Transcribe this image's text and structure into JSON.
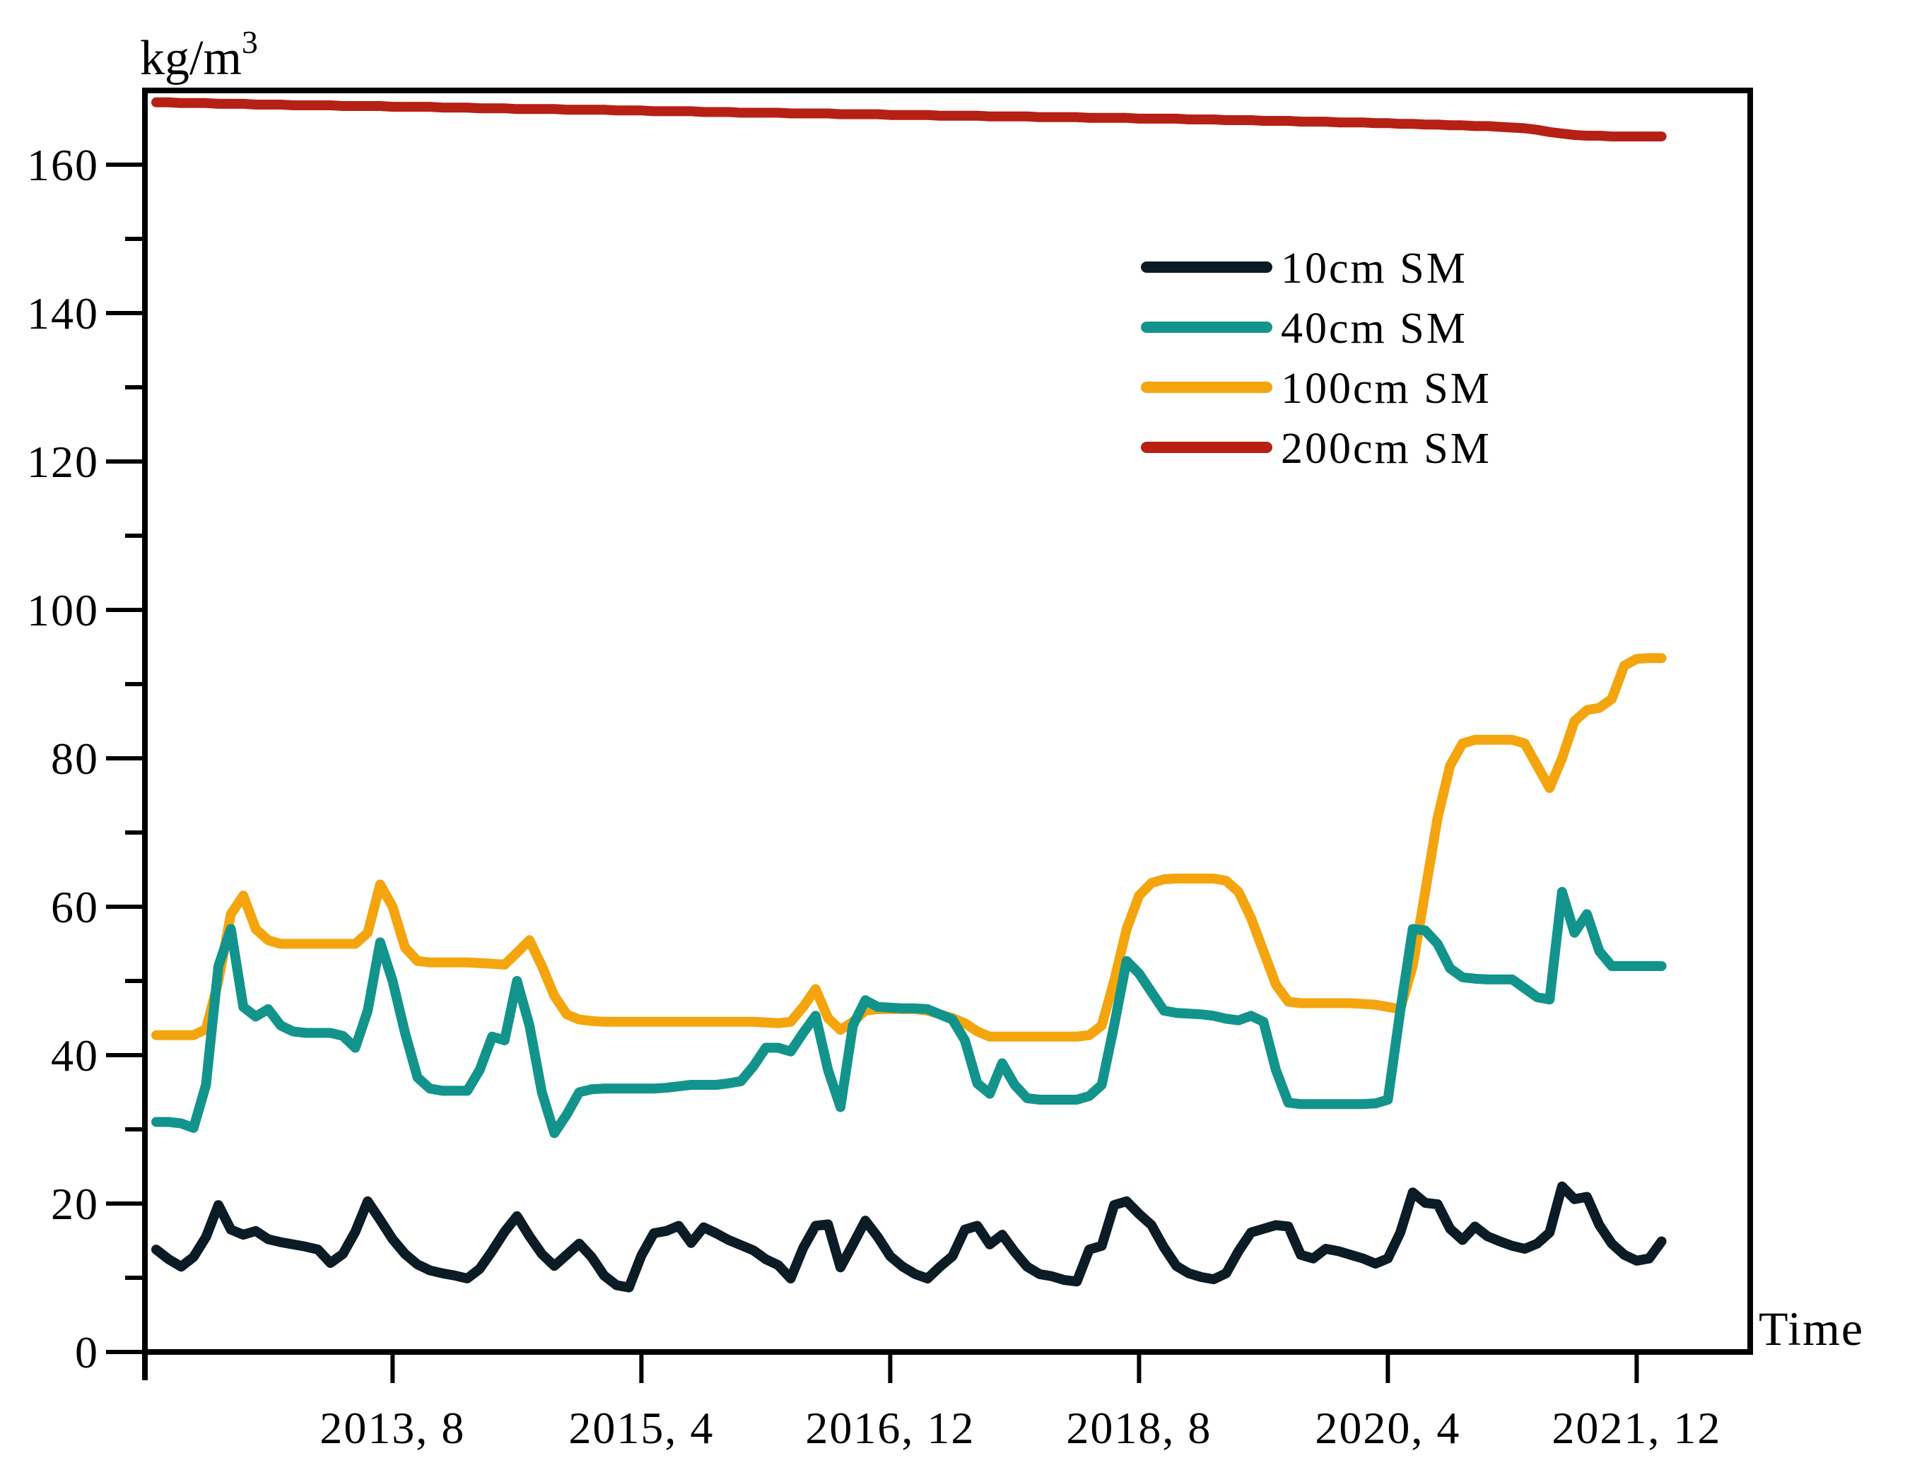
{
  "chart_data": {
    "type": "line",
    "title": "",
    "ylabel": "kg/m3",
    "ylabel_base": "kg/m",
    "ylabel_superscript": "3",
    "xlabel": "Time",
    "ylim": [
      0,
      170
    ],
    "y_major_ticks": [
      0,
      20,
      40,
      60,
      80,
      100,
      120,
      140,
      160
    ],
    "y_minor_tick_step": 10,
    "grid": false,
    "legend_position": "upper-right-inside",
    "x_start": "2012-01",
    "x_end": "2022-02",
    "x_unit": "month",
    "x_tick_indices": [
      19,
      39,
      59,
      79,
      99,
      119
    ],
    "x_tick_labels": [
      "2013, 8",
      "2015, 4",
      "2016, 12",
      "2018, 8",
      "2020, 4",
      "2021, 12"
    ],
    "series": [
      {
        "name": "10cm SM",
        "color": "#0c1c26",
        "values": [
          13.8,
          12.5,
          11.5,
          12.8,
          15.5,
          19.8,
          16.5,
          15.8,
          16.3,
          15.2,
          14.8,
          14.5,
          14.2,
          13.8,
          12.0,
          13.2,
          16.2,
          20.3,
          17.8,
          15.2,
          13.2,
          11.8,
          11.0,
          10.6,
          10.3,
          9.9,
          11.2,
          13.6,
          16.2,
          18.3,
          15.6,
          13.2,
          11.6,
          13.1,
          14.6,
          12.8,
          10.3,
          9.0,
          8.7,
          13.0,
          16.0,
          16.3,
          17.0,
          14.7,
          16.8,
          16.0,
          15.1,
          14.4,
          13.7,
          12.5,
          11.7,
          9.9,
          14.0,
          17.0,
          17.2,
          11.4,
          14.5,
          17.7,
          15.5,
          12.9,
          11.5,
          10.5,
          9.9,
          11.5,
          12.9,
          16.5,
          17.0,
          14.5,
          15.8,
          13.5,
          11.5,
          10.5,
          10.2,
          9.7,
          9.5,
          13.8,
          14.3,
          19.8,
          20.3,
          18.6,
          17.1,
          14.1,
          11.6,
          10.6,
          10.1,
          9.8,
          10.6,
          13.6,
          16.1,
          16.6,
          17.1,
          16.9,
          13.1,
          12.6,
          13.9,
          13.6,
          13.1,
          12.6,
          11.9,
          12.6,
          16.1,
          21.5,
          20.1,
          19.9,
          16.6,
          15.1,
          16.9,
          15.6,
          14.9,
          14.3,
          13.9,
          14.6,
          16.1,
          22.3,
          20.6,
          20.9,
          17.1,
          14.6,
          13.1,
          12.3,
          12.6,
          14.9
        ]
      },
      {
        "name": "40cm SM",
        "color": "#12948c",
        "values": [
          31.0,
          31.0,
          30.8,
          30.2,
          36.0,
          52.0,
          57.0,
          46.5,
          45.2,
          46.2,
          44.0,
          43.2,
          43.0,
          43.0,
          43.0,
          42.6,
          41.0,
          46.0,
          55.2,
          50.0,
          43.0,
          37.0,
          35.5,
          35.2,
          35.2,
          35.2,
          38.0,
          42.5,
          42.0,
          50.0,
          44.0,
          35.0,
          29.5,
          32.0,
          35.0,
          35.4,
          35.5,
          35.5,
          35.5,
          35.5,
          35.5,
          35.6,
          35.8,
          36.0,
          36.0,
          36.0,
          36.2,
          36.5,
          38.5,
          41.0,
          41.0,
          40.5,
          43.0,
          45.3,
          38.0,
          33.0,
          44.0,
          47.4,
          46.5,
          46.4,
          46.3,
          46.3,
          46.2,
          45.5,
          44.8,
          42.0,
          36.2,
          34.8,
          38.9,
          36.0,
          34.2,
          34.0,
          34.0,
          34.0,
          34.0,
          34.5,
          36.0,
          44.0,
          52.7,
          51.0,
          48.5,
          46.0,
          45.7,
          45.6,
          45.5,
          45.3,
          44.9,
          44.7,
          45.3,
          44.5,
          38.0,
          33.6,
          33.4,
          33.4,
          33.4,
          33.4,
          33.4,
          33.4,
          33.5,
          34.0,
          46.0,
          57.0,
          56.8,
          55.0,
          51.7,
          50.5,
          50.3,
          50.2,
          50.2,
          50.2,
          49.0,
          47.8,
          47.5,
          62.0,
          56.5,
          59.0,
          54.0,
          52.0,
          52.0,
          52.0,
          52.0,
          52.0
        ]
      },
      {
        "name": "100cm SM",
        "color": "#f4a50e",
        "values": [
          42.7,
          42.7,
          42.7,
          42.7,
          43.5,
          50.0,
          59.0,
          61.5,
          57.0,
          55.5,
          55.0,
          55.0,
          55.0,
          55.0,
          55.0,
          55.0,
          55.0,
          56.5,
          63.0,
          60.0,
          54.5,
          52.7,
          52.5,
          52.5,
          52.5,
          52.5,
          52.4,
          52.3,
          52.2,
          53.8,
          55.5,
          52.0,
          48.0,
          45.5,
          44.8,
          44.6,
          44.5,
          44.5,
          44.5,
          44.5,
          44.5,
          44.5,
          44.5,
          44.5,
          44.5,
          44.5,
          44.5,
          44.5,
          44.5,
          44.4,
          44.3,
          44.5,
          46.5,
          48.9,
          45.0,
          43.4,
          44.5,
          46.0,
          46.2,
          46.2,
          46.2,
          46.2,
          46.0,
          45.5,
          45.0,
          44.3,
          43.2,
          42.5,
          42.5,
          42.5,
          42.5,
          42.5,
          42.5,
          42.5,
          42.5,
          42.7,
          44.0,
          50.0,
          57.0,
          61.5,
          63.2,
          63.7,
          63.8,
          63.8,
          63.8,
          63.8,
          63.5,
          62.0,
          58.5,
          54.0,
          49.5,
          47.2,
          47.0,
          47.0,
          47.0,
          47.0,
          47.0,
          46.9,
          46.8,
          46.5,
          46.2,
          52.0,
          62.0,
          72.0,
          79.0,
          82.0,
          82.5,
          82.5,
          82.5,
          82.5,
          82.0,
          79.0,
          76.0,
          80.0,
          85.0,
          86.5,
          86.8,
          88.0,
          92.5,
          93.4,
          93.5,
          93.5
        ]
      },
      {
        "name": "200cm SM",
        "color": "#b62015",
        "values": [
          168.4,
          168.4,
          168.3,
          168.3,
          168.3,
          168.2,
          168.2,
          168.2,
          168.1,
          168.1,
          168.1,
          168.0,
          168.0,
          168.0,
          168.0,
          167.9,
          167.9,
          167.9,
          167.9,
          167.8,
          167.8,
          167.8,
          167.8,
          167.7,
          167.7,
          167.7,
          167.6,
          167.6,
          167.6,
          167.5,
          167.5,
          167.5,
          167.5,
          167.4,
          167.4,
          167.4,
          167.4,
          167.3,
          167.3,
          167.3,
          167.2,
          167.2,
          167.2,
          167.2,
          167.1,
          167.1,
          167.1,
          167.0,
          167.0,
          167.0,
          167.0,
          166.9,
          166.9,
          166.9,
          166.9,
          166.8,
          166.8,
          166.8,
          166.8,
          166.7,
          166.7,
          166.7,
          166.7,
          166.6,
          166.6,
          166.6,
          166.6,
          166.5,
          166.5,
          166.5,
          166.5,
          166.4,
          166.4,
          166.4,
          166.4,
          166.3,
          166.3,
          166.3,
          166.3,
          166.2,
          166.2,
          166.2,
          166.2,
          166.1,
          166.1,
          166.1,
          166.0,
          166.0,
          166.0,
          165.9,
          165.9,
          165.9,
          165.8,
          165.8,
          165.8,
          165.7,
          165.7,
          165.7,
          165.6,
          165.6,
          165.5,
          165.5,
          165.4,
          165.4,
          165.3,
          165.3,
          165.2,
          165.2,
          165.1,
          165.0,
          164.9,
          164.7,
          164.4,
          164.2,
          164.0,
          163.9,
          163.9,
          163.8,
          163.8,
          163.8,
          163.8,
          163.8
        ]
      }
    ]
  },
  "legend": {
    "entries": [
      {
        "label": "10cm SM"
      },
      {
        "label": "40cm SM"
      },
      {
        "label": "100cm SM"
      },
      {
        "label": "200cm SM"
      }
    ]
  },
  "labels": {
    "y_unit": "kg/m",
    "y_unit_sup": "3",
    "x_title": "Time"
  }
}
